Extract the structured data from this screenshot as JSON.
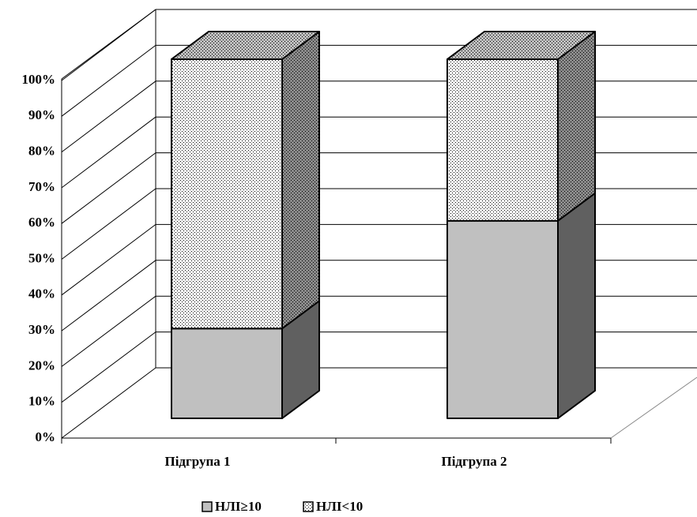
{
  "chart_data": {
    "type": "bar3d_stacked",
    "categories": [
      "Підгрупа 1",
      "Підгрупа 2"
    ],
    "series": [
      {
        "name": "НЛІ≥10",
        "color": "#c0c0c0",
        "values": [
          25,
          55
        ]
      },
      {
        "name": "НЛІ<10",
        "color": "#ffffff",
        "values": [
          75,
          45
        ]
      }
    ],
    "ylim": [
      0,
      100
    ],
    "yticks": [
      {
        "value": 0,
        "label": "0%"
      },
      {
        "value": 10,
        "label": "10%"
      },
      {
        "value": 20,
        "label": "20%"
      },
      {
        "value": 30,
        "label": "30%"
      },
      {
        "value": 40,
        "label": "40%"
      },
      {
        "value": 50,
        "label": "50%"
      },
      {
        "value": 60,
        "label": "60%"
      },
      {
        "value": 70,
        "label": "70%"
      },
      {
        "value": 80,
        "label": "80%"
      },
      {
        "value": 90,
        "label": "90%"
      },
      {
        "value": 100,
        "label": "100%"
      }
    ],
    "grid": true,
    "legend": "bottom"
  }
}
